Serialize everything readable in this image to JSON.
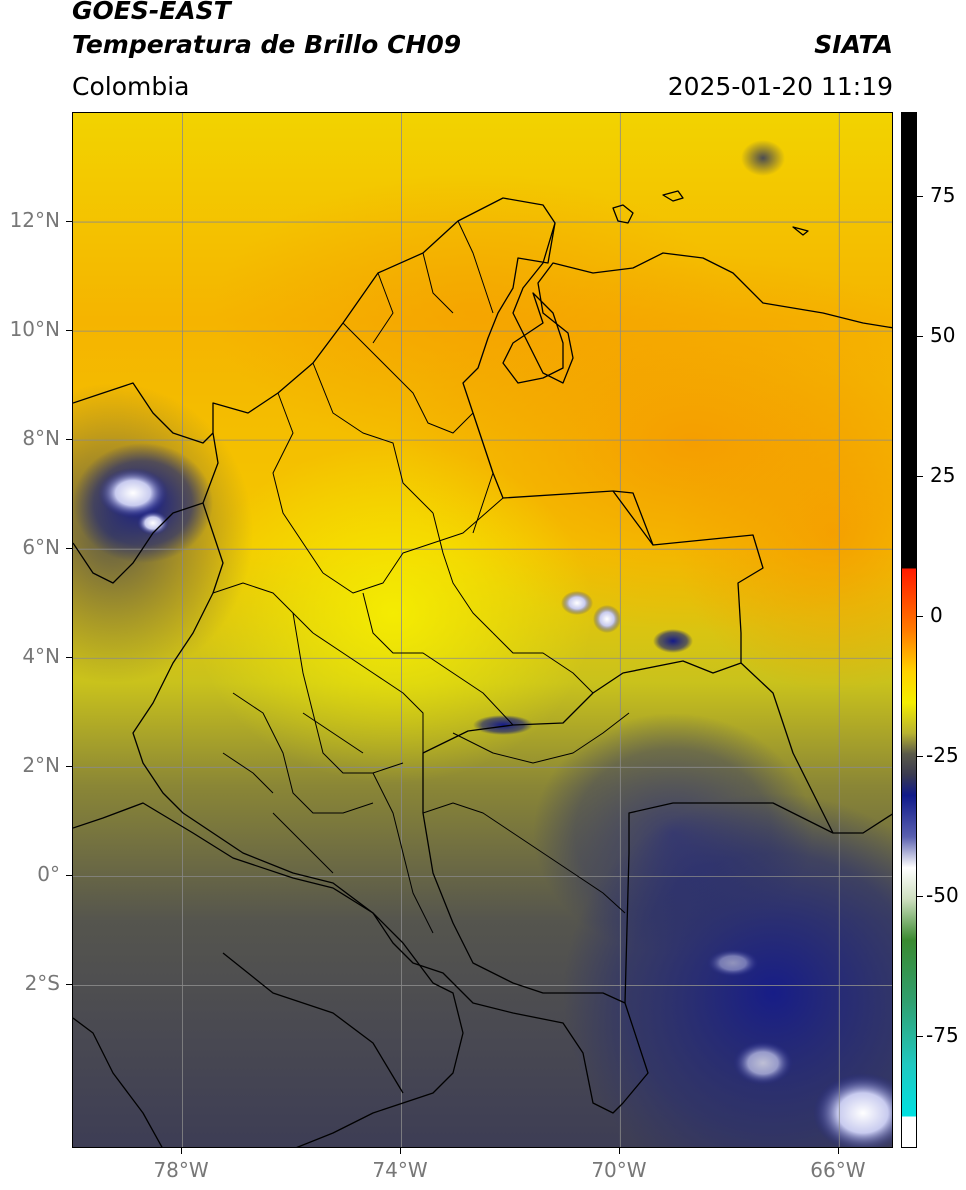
{
  "header": {
    "satellite": "GOES-EAST",
    "product": "Temperatura de Brillo CH09",
    "region": "Colombia",
    "agency": "SIATA",
    "datetime": "2025-01-20 11:19"
  },
  "map": {
    "lon_range": [
      -80,
      -65
    ],
    "lat_range": [
      -5,
      14
    ],
    "lon_ticks": [
      {
        "value": -78,
        "label": "78°W"
      },
      {
        "value": -74,
        "label": "74°W"
      },
      {
        "value": -70,
        "label": "70°W"
      },
      {
        "value": -66,
        "label": "66°W"
      }
    ],
    "lat_ticks": [
      {
        "value": 12,
        "label": "12°N"
      },
      {
        "value": 10,
        "label": "10°N"
      },
      {
        "value": 8,
        "label": "8°N"
      },
      {
        "value": 6,
        "label": "6°N"
      },
      {
        "value": 4,
        "label": "4°N"
      },
      {
        "value": 2,
        "label": "2°N"
      },
      {
        "value": 0,
        "label": "0°"
      },
      {
        "value": -2,
        "label": "2°S"
      }
    ],
    "grid": true,
    "colors": {
      "warm_orange": "#f6a000",
      "yellow": "#f5e400",
      "olive": "#8d8a3a",
      "gray": "#4f5055",
      "navy": "#1b1f7a",
      "border": "#000000"
    }
  },
  "colorbar": {
    "range": [
      -95,
      90
    ],
    "ticks": [
      {
        "value": 75,
        "label": "75"
      },
      {
        "value": 50,
        "label": "50"
      },
      {
        "value": 25,
        "label": "25"
      },
      {
        "value": 0,
        "label": "0"
      },
      {
        "value": -25,
        "label": "-25"
      },
      {
        "value": -50,
        "label": "-50"
      },
      {
        "value": -75,
        "label": "-75"
      }
    ]
  }
}
